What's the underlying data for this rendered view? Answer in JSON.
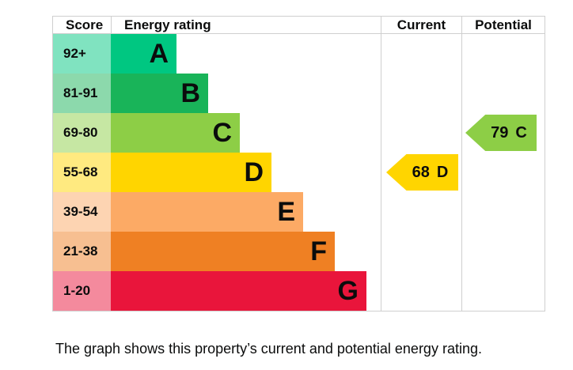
{
  "table": {
    "headers": {
      "score": "Score",
      "rating": "Energy rating",
      "current": "Current",
      "potential": "Potential"
    }
  },
  "chart_data": {
    "type": "bar",
    "orientation": "horizontal",
    "bands": [
      {
        "score_range": "92+",
        "letter": "A",
        "color": "#00c781",
        "tint": "#80e3c0",
        "width_pct": 24.3
      },
      {
        "score_range": "81-91",
        "letter": "B",
        "color": "#19b459",
        "tint": "#8cd9ac",
        "width_pct": 36.1
      },
      {
        "score_range": "69-80",
        "letter": "C",
        "color": "#8dce46",
        "tint": "#c6e7a3",
        "width_pct": 47.8
      },
      {
        "score_range": "55-68",
        "letter": "D",
        "color": "#ffd500",
        "tint": "#ffea80",
        "width_pct": 59.5
      },
      {
        "score_range": "39-54",
        "letter": "E",
        "color": "#fcaa65",
        "tint": "#fdd4b2",
        "width_pct": 71.3
      },
      {
        "score_range": "21-38",
        "letter": "F",
        "color": "#ef8023",
        "tint": "#f7bf91",
        "width_pct": 83.0
      },
      {
        "score_range": "1-20",
        "letter": "G",
        "color": "#e9153b",
        "tint": "#f48a9d",
        "width_pct": 94.7
      }
    ],
    "current": {
      "score": "68",
      "band": "D",
      "band_index": 3,
      "color": "#ffd500"
    },
    "potential": {
      "score": "79",
      "band": "C",
      "band_index": 2,
      "color": "#8dce46"
    }
  },
  "footer": {
    "caption": "The graph shows this property’s current and potential energy rating."
  },
  "colors": {
    "border": "#cfcfcf",
    "text": "#0b0c0c"
  }
}
